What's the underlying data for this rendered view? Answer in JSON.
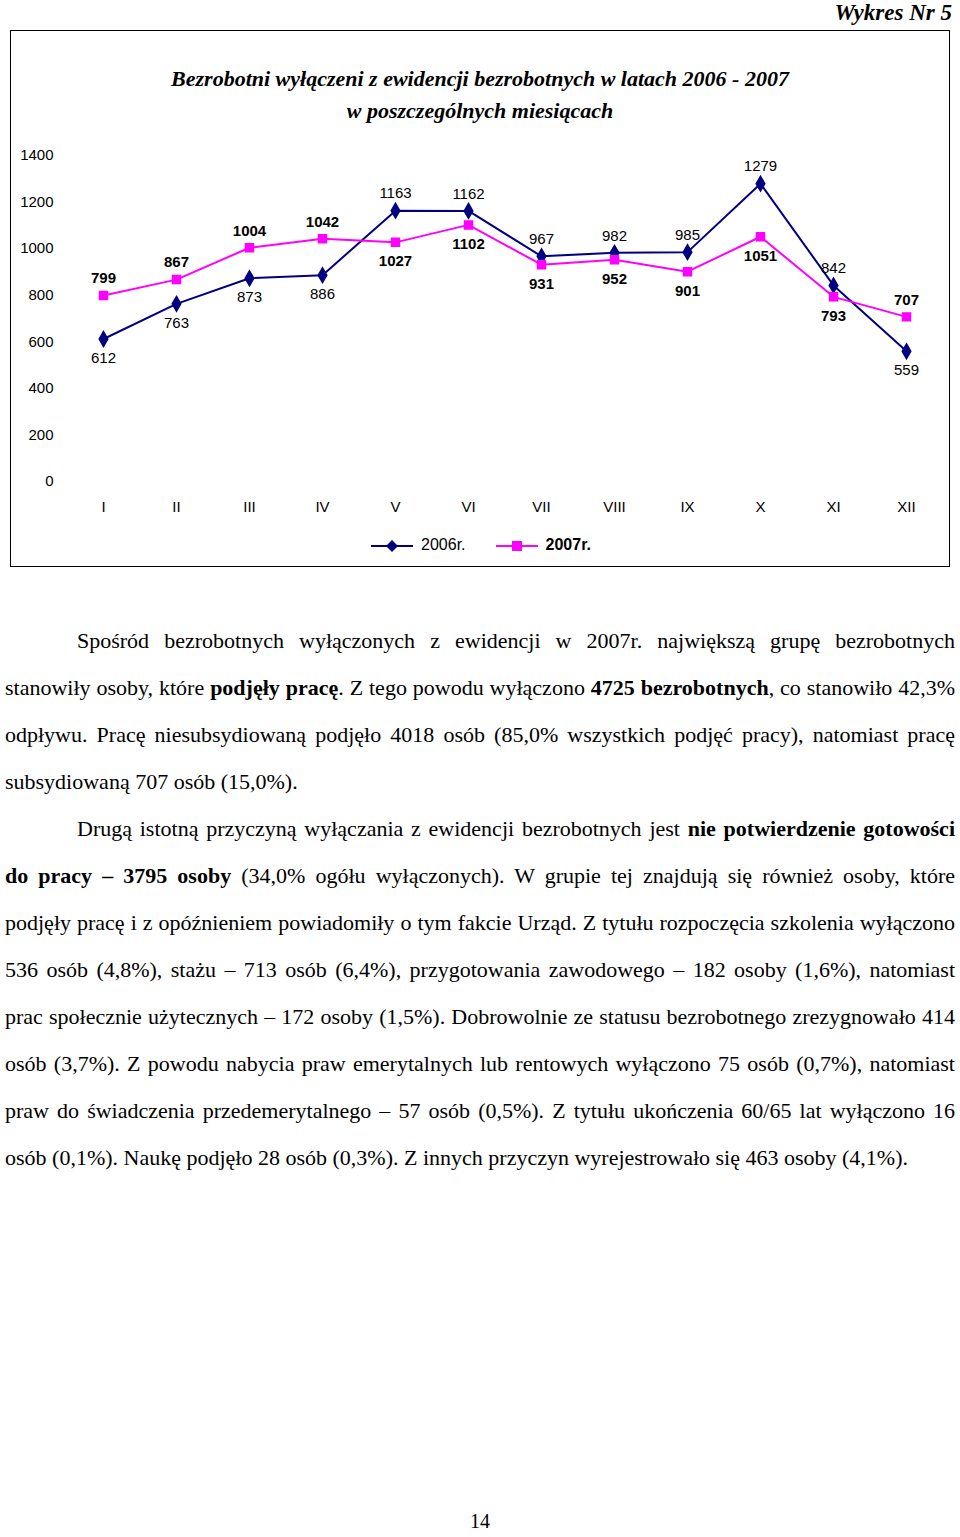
{
  "header": "Wykres Nr 5",
  "chart_data": {
    "type": "line",
    "title": [
      "Bezrobotni wyłączeni z ewidencji bezrobotnych w latach 2006 - 2007",
      "w poszczególnych miesiącach"
    ],
    "categories": [
      "I",
      "II",
      "III",
      "IV",
      "V",
      "VI",
      "VII",
      "VIII",
      "IX",
      "X",
      "XI",
      "XII"
    ],
    "series": [
      {
        "name": "2006r.",
        "color": "#000080",
        "marker": "diamond",
        "line_style": "solid",
        "values": [
          612,
          763,
          873,
          886,
          1163,
          1162,
          967,
          982,
          985,
          1279,
          842,
          559
        ]
      },
      {
        "name": "2007r.",
        "color": "#ff00ff",
        "marker": "square",
        "line_style": "solid",
        "values": [
          799,
          867,
          1004,
          1042,
          1027,
          1102,
          931,
          952,
          901,
          1051,
          793,
          707
        ]
      }
    ],
    "ylim": [
      0,
      1400
    ],
    "yticks": [
      0,
      200,
      400,
      600,
      800,
      1000,
      1200,
      1400
    ],
    "grid": false,
    "legend": "bottom",
    "data_labels": true
  },
  "paragraphs": [
    [
      {
        "t": "Spośród bezrobotnych wyłączonych z ewidencji w 2007r. największą grupę bezrobotnych stanowiły osoby, które "
      },
      {
        "t": "podjęły pracę",
        "b": true
      },
      {
        "t": ". Z tego powodu wyłączono "
      },
      {
        "t": "4725 bezrobotnych",
        "b": true
      },
      {
        "t": ", co stanowiło 42,3% odpływu. Pracę niesubsydiowaną podjęło 4018 osób (85,0% wszystkich podjęć pracy), natomiast pracę subsydiowaną 707 osób (15,0%)."
      }
    ],
    [
      {
        "t": "Drugą istotną przyczyną wyłączania z ewidencji bezrobotnych jest "
      },
      {
        "t": "nie potwierdzenie gotowości do pracy – 3795 osoby",
        "b": true
      },
      {
        "t": " (34,0% ogółu wyłączonych). W grupie tej znajdują się również osoby, które podjęły pracę i z opóźnieniem powiadomiły o tym fakcie Urząd. Z tytułu rozpoczęcia szkolenia wyłączono 536 osób (4,8%), stażu – 713 osób (6,4%), przygotowania zawodowego – 182 osoby (1,6%), natomiast prac społecznie użytecznych – 172 osoby (1,5%). Dobrowolnie ze statusu bezrobotnego zrezygnowało 414 osób (3,7%). Z powodu nabycia praw emerytalnych lub rentowych wyłączono 75 osób (0,7%), natomiast praw do świadczenia przedemerytalnego – 57 osób (0,5%). Z tytułu ukończenia 60/65 lat wyłączono 16 osób (0,1%). Naukę podjęło 28 osób (0,3%). Z innych przyczyn wyrejestrowało się 463 osoby (4,1%)."
      }
    ]
  ],
  "page_number": "14"
}
